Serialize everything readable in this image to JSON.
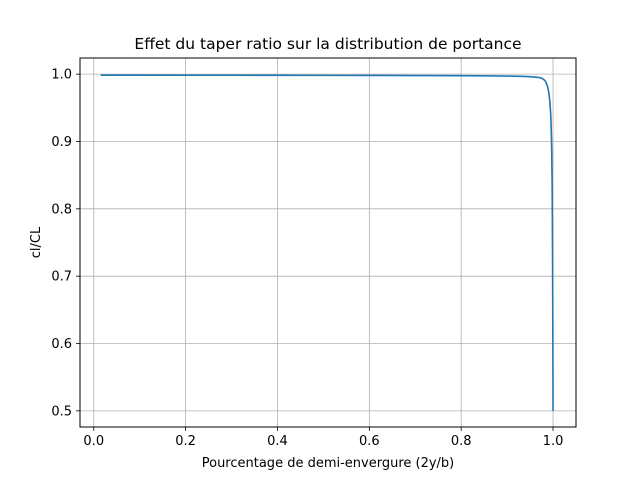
{
  "chart_data": {
    "type": "line",
    "title": "Effet du taper ratio sur la distribution de portance",
    "xlabel": "Pourcentage de demi-envergure (2y/b)",
    "ylabel": "cl/CL",
    "xlim": [
      -0.03,
      1.05
    ],
    "ylim": [
      0.476,
      1.024
    ],
    "xticks": [
      0.0,
      0.2,
      0.4,
      0.6,
      0.8,
      1.0
    ],
    "xtick_labels": [
      "0.0",
      "0.2",
      "0.4",
      "0.6",
      "0.8",
      "1.0"
    ],
    "yticks": [
      0.5,
      0.6,
      0.7,
      0.8,
      0.9,
      1.0
    ],
    "ytick_labels": [
      "0.5",
      "0.6",
      "0.7",
      "0.8",
      "0.9",
      "1.0"
    ],
    "grid": true,
    "legend": "none",
    "series": [
      {
        "color": "#1f77b4",
        "x": [
          0.015,
          0.1,
          0.2,
          0.3,
          0.4,
          0.5,
          0.6,
          0.7,
          0.8,
          0.85,
          0.9,
          0.93,
          0.95,
          0.96,
          0.97,
          0.975,
          0.98,
          0.984,
          0.988,
          0.991,
          0.993,
          0.995,
          0.996,
          0.997,
          0.998,
          0.9985,
          0.999,
          0.9995,
          1.0
        ],
        "y": [
          0.9985,
          0.9985,
          0.9984,
          0.9984,
          0.9983,
          0.9982,
          0.9981,
          0.9979,
          0.9977,
          0.9975,
          0.9972,
          0.9968,
          0.9962,
          0.9957,
          0.995,
          0.994,
          0.992,
          0.989,
          0.982,
          0.972,
          0.96,
          0.94,
          0.92,
          0.89,
          0.84,
          0.79,
          0.72,
          0.62,
          0.5
        ]
      }
    ]
  }
}
